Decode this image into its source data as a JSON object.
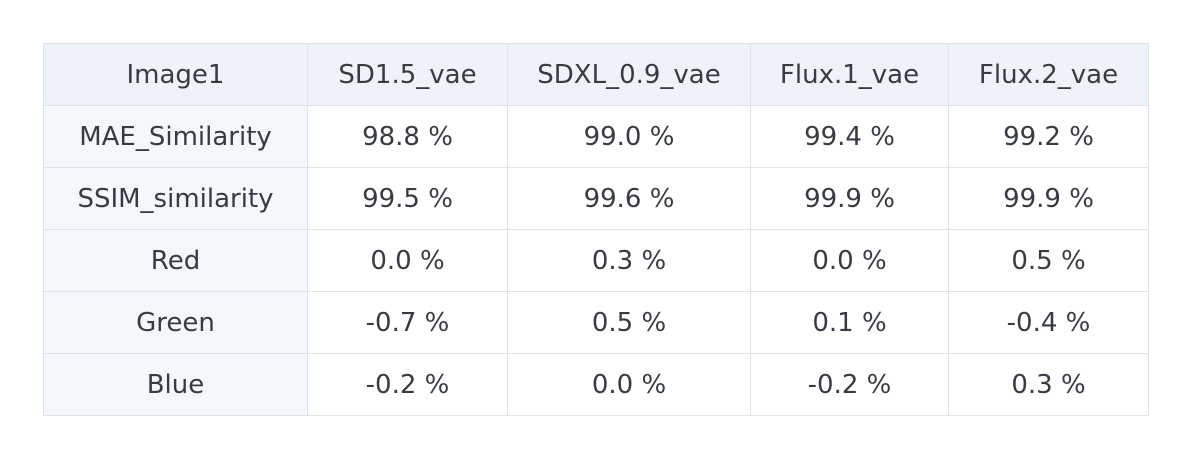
{
  "table": {
    "header": [
      "Image1",
      "SD1.5_vae",
      "SDXL_0.9_vae",
      "Flux.1_vae",
      "Flux.2_vae"
    ],
    "rows": [
      [
        "MAE_Similarity",
        "98.8 %",
        "99.0 %",
        "99.4 %",
        "99.2 %"
      ],
      [
        "SSIM_similarity",
        "99.5 %",
        "99.6 %",
        "99.9 %",
        "99.9 %"
      ],
      [
        "Red",
        "0.0 %",
        "0.3 %",
        "0.0 %",
        "0.5 %"
      ],
      [
        "Green",
        "-0.7 %",
        "0.5 %",
        "0.1 %",
        "-0.4 %"
      ],
      [
        "Blue",
        "-0.2 %",
        "0.0 %",
        "-0.2 %",
        "0.3 %"
      ]
    ]
  }
}
